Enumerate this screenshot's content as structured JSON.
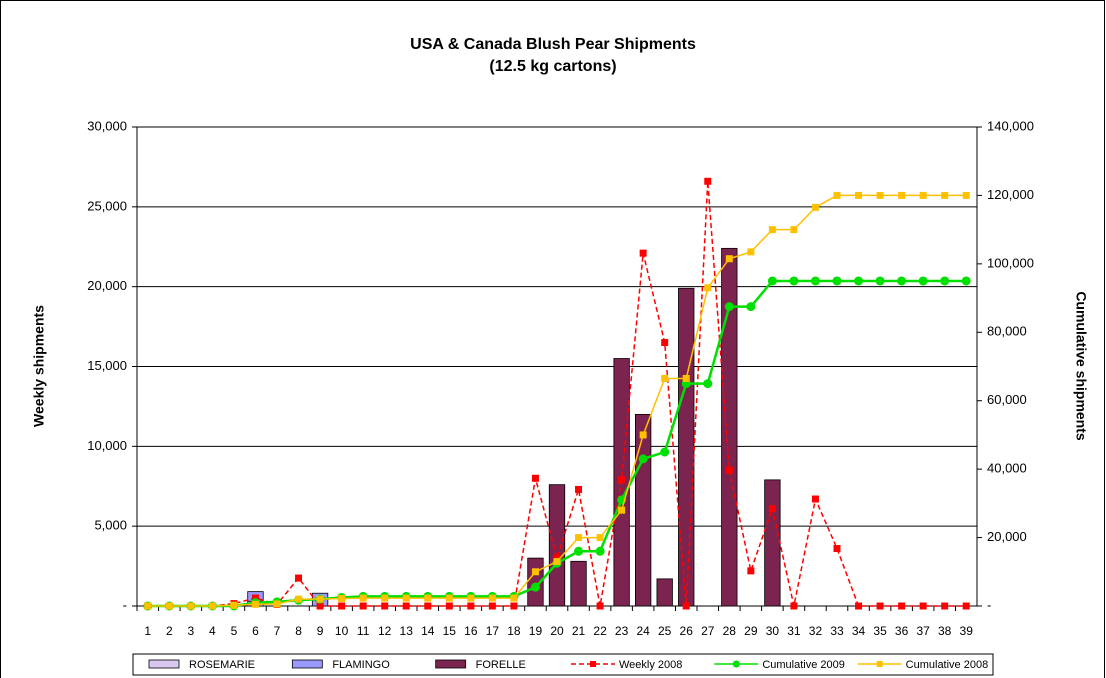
{
  "chart_data": {
    "type": "bar",
    "title": "USA & Canada Blush Pear Shipments",
    "subtitle": "(12.5 kg cartons)",
    "y_label": "Weekly shipments",
    "y2_label": "Cumulative shipments",
    "categories": [
      1,
      2,
      3,
      4,
      5,
      6,
      7,
      8,
      9,
      10,
      11,
      12,
      13,
      14,
      15,
      16,
      17,
      18,
      19,
      20,
      21,
      22,
      23,
      24,
      25,
      26,
      27,
      28,
      29,
      30,
      31,
      32,
      33,
      34,
      35,
      36,
      37,
      38,
      39
    ],
    "stacked": true,
    "grid": true,
    "legend": "bottom",
    "ylim": [
      0,
      30000
    ],
    "yticks": [
      {
        "value": 0,
        "label": "-"
      },
      {
        "value": 5000,
        "label": "5,000"
      },
      {
        "value": 10000,
        "label": "10,000"
      },
      {
        "value": 15000,
        "label": "15,000"
      },
      {
        "value": 20000,
        "label": "20,000"
      },
      {
        "value": 25000,
        "label": "25,000"
      },
      {
        "value": 30000,
        "label": "30,000"
      }
    ],
    "y2lim": [
      0,
      140000
    ],
    "y2ticks": [
      {
        "value": 0,
        "label": "-"
      },
      {
        "value": 20000,
        "label": "20,000"
      },
      {
        "value": 40000,
        "label": "40,000"
      },
      {
        "value": 60000,
        "label": "60,000"
      },
      {
        "value": 80000,
        "label": "80,000"
      },
      {
        "value": 100000,
        "label": "100,000"
      },
      {
        "value": 120000,
        "label": "120,000"
      },
      {
        "value": 140000,
        "label": "140,000"
      }
    ],
    "series": [
      {
        "name": "ROSEMARIE",
        "kind": "bar",
        "color": "#d8c8f0",
        "values": [
          0,
          0,
          0,
          0,
          0,
          300,
          0,
          0,
          0,
          0,
          0,
          0,
          0,
          0,
          0,
          0,
          0,
          0,
          0,
          0,
          0,
          0,
          0,
          0,
          0,
          0,
          0,
          0,
          0,
          0,
          0,
          0,
          0,
          0,
          0,
          0,
          0,
          0,
          0
        ]
      },
      {
        "name": "FLAMINGO",
        "kind": "bar",
        "color": "#9999ff",
        "values": [
          0,
          0,
          0,
          0,
          0,
          600,
          0,
          0,
          800,
          0,
          0,
          0,
          0,
          0,
          0,
          0,
          0,
          0,
          0,
          0,
          0,
          0,
          0,
          0,
          0,
          0,
          0,
          0,
          0,
          0,
          0,
          0,
          0,
          0,
          0,
          0,
          0,
          0,
          0
        ]
      },
      {
        "name": "FORELLE",
        "kind": "bar",
        "color": "#7b2450",
        "values": [
          0,
          0,
          0,
          0,
          0,
          0,
          0,
          0,
          0,
          0,
          0,
          0,
          0,
          0,
          0,
          0,
          0,
          0,
          3000,
          7600,
          2800,
          0,
          15500,
          12000,
          1700,
          19900,
          0,
          22400,
          0,
          7900,
          0,
          0,
          0,
          0,
          0,
          0,
          0,
          0,
          0
        ]
      },
      {
        "name": "Weekly 2008",
        "kind": "line",
        "dash": true,
        "marker": "square",
        "color": "#ff0000",
        "values": [
          0,
          0,
          0,
          0,
          150,
          500,
          100,
          1750,
          0,
          0,
          0,
          0,
          0,
          0,
          0,
          0,
          0,
          0,
          8000,
          3000,
          7300,
          0,
          7900,
          22100,
          16500,
          0,
          26600,
          8500,
          2200,
          6100,
          0,
          6700,
          3600,
          0,
          0,
          0,
          0,
          0,
          0
        ]
      },
      {
        "name": "Cumulative 2009",
        "kind": "line",
        "axis": "y2",
        "marker": "circle",
        "color": "#00e000",
        "values": [
          0,
          0,
          0,
          0,
          0,
          1000,
          1200,
          1700,
          2000,
          2500,
          2800,
          2800,
          2800,
          2800,
          2800,
          2800,
          2800,
          2800,
          5500,
          12500,
          16000,
          16000,
          31000,
          43000,
          45000,
          65000,
          65000,
          87500,
          87500,
          95000,
          95000,
          95000,
          95000,
          95000,
          95000,
          95000,
          95000,
          95000,
          95000
        ]
      },
      {
        "name": "Cumulative 2008",
        "kind": "line",
        "axis": "y2",
        "marker": "square",
        "color": "#ffc000",
        "values": [
          0,
          0,
          0,
          0,
          200,
          500,
          600,
          2000,
          2000,
          2200,
          2300,
          2300,
          2300,
          2300,
          2300,
          2300,
          2300,
          2300,
          10000,
          13000,
          20000,
          20000,
          28000,
          50000,
          66500,
          66500,
          93000,
          101500,
          103500,
          110000,
          110000,
          116500,
          120000,
          120000,
          120000,
          120000,
          120000,
          120000,
          120000
        ]
      }
    ]
  }
}
